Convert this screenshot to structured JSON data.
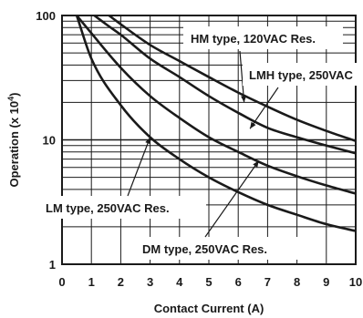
{
  "chart_data": {
    "type": "line",
    "title": "",
    "xlabel": "Contact Current (A)",
    "ylabel_main": "Operation (x 10",
    "ylabel_sup": "4",
    "ylabel_end": ")",
    "xlim": [
      0,
      10
    ],
    "ylim": [
      1,
      100
    ],
    "yscale": "log",
    "grid": true,
    "x_ticks": [
      "0",
      "1",
      "2",
      "3",
      "4",
      "5",
      "6",
      "7",
      "8",
      "9",
      "10"
    ],
    "y_ticks": [
      "1",
      "10",
      "100"
    ],
    "series": [
      {
        "name": "HM type, 120VAC Res.",
        "x": [
          1.6,
          2,
          3,
          4,
          5,
          6,
          7,
          8,
          9,
          10
        ],
        "y": [
          100,
          85,
          58,
          43,
          32,
          24,
          18.5,
          14.5,
          11.8,
          9.8
        ]
      },
      {
        "name": "LMH type, 250VAC Res.",
        "x": [
          1.1,
          1.5,
          2,
          3,
          4,
          5,
          6,
          7,
          8,
          9,
          10
        ],
        "y": [
          100,
          85,
          70,
          45,
          32,
          22.5,
          16.5,
          12.5,
          10.5,
          9,
          7.8
        ]
      },
      {
        "name": "LM type, 250VAC Res.",
        "x": [
          0.5,
          1,
          2,
          3,
          4,
          5,
          6,
          7,
          8,
          9,
          10
        ],
        "y": [
          100,
          45,
          19,
          10.5,
          7,
          5,
          3.8,
          3.0,
          2.5,
          2.1,
          1.85
        ]
      },
      {
        "name": "DM type, 250VAC Res.",
        "x": [
          0.5,
          1,
          2,
          3,
          4,
          5,
          6,
          7,
          8,
          9,
          10
        ],
        "y": [
          100,
          72,
          38,
          22.5,
          15,
          10.5,
          8,
          6.2,
          5.1,
          4.3,
          3.7
        ]
      }
    ],
    "annotations": [
      {
        "text": "HM type, 120VAC Res.",
        "series": 0
      },
      {
        "text": "LMH type, 250VAC",
        "series": 1
      },
      {
        "text": "LM type, 250VAC Res.",
        "series": 2
      },
      {
        "text": "DM type, 250VAC  Res.",
        "series": 3
      }
    ]
  }
}
